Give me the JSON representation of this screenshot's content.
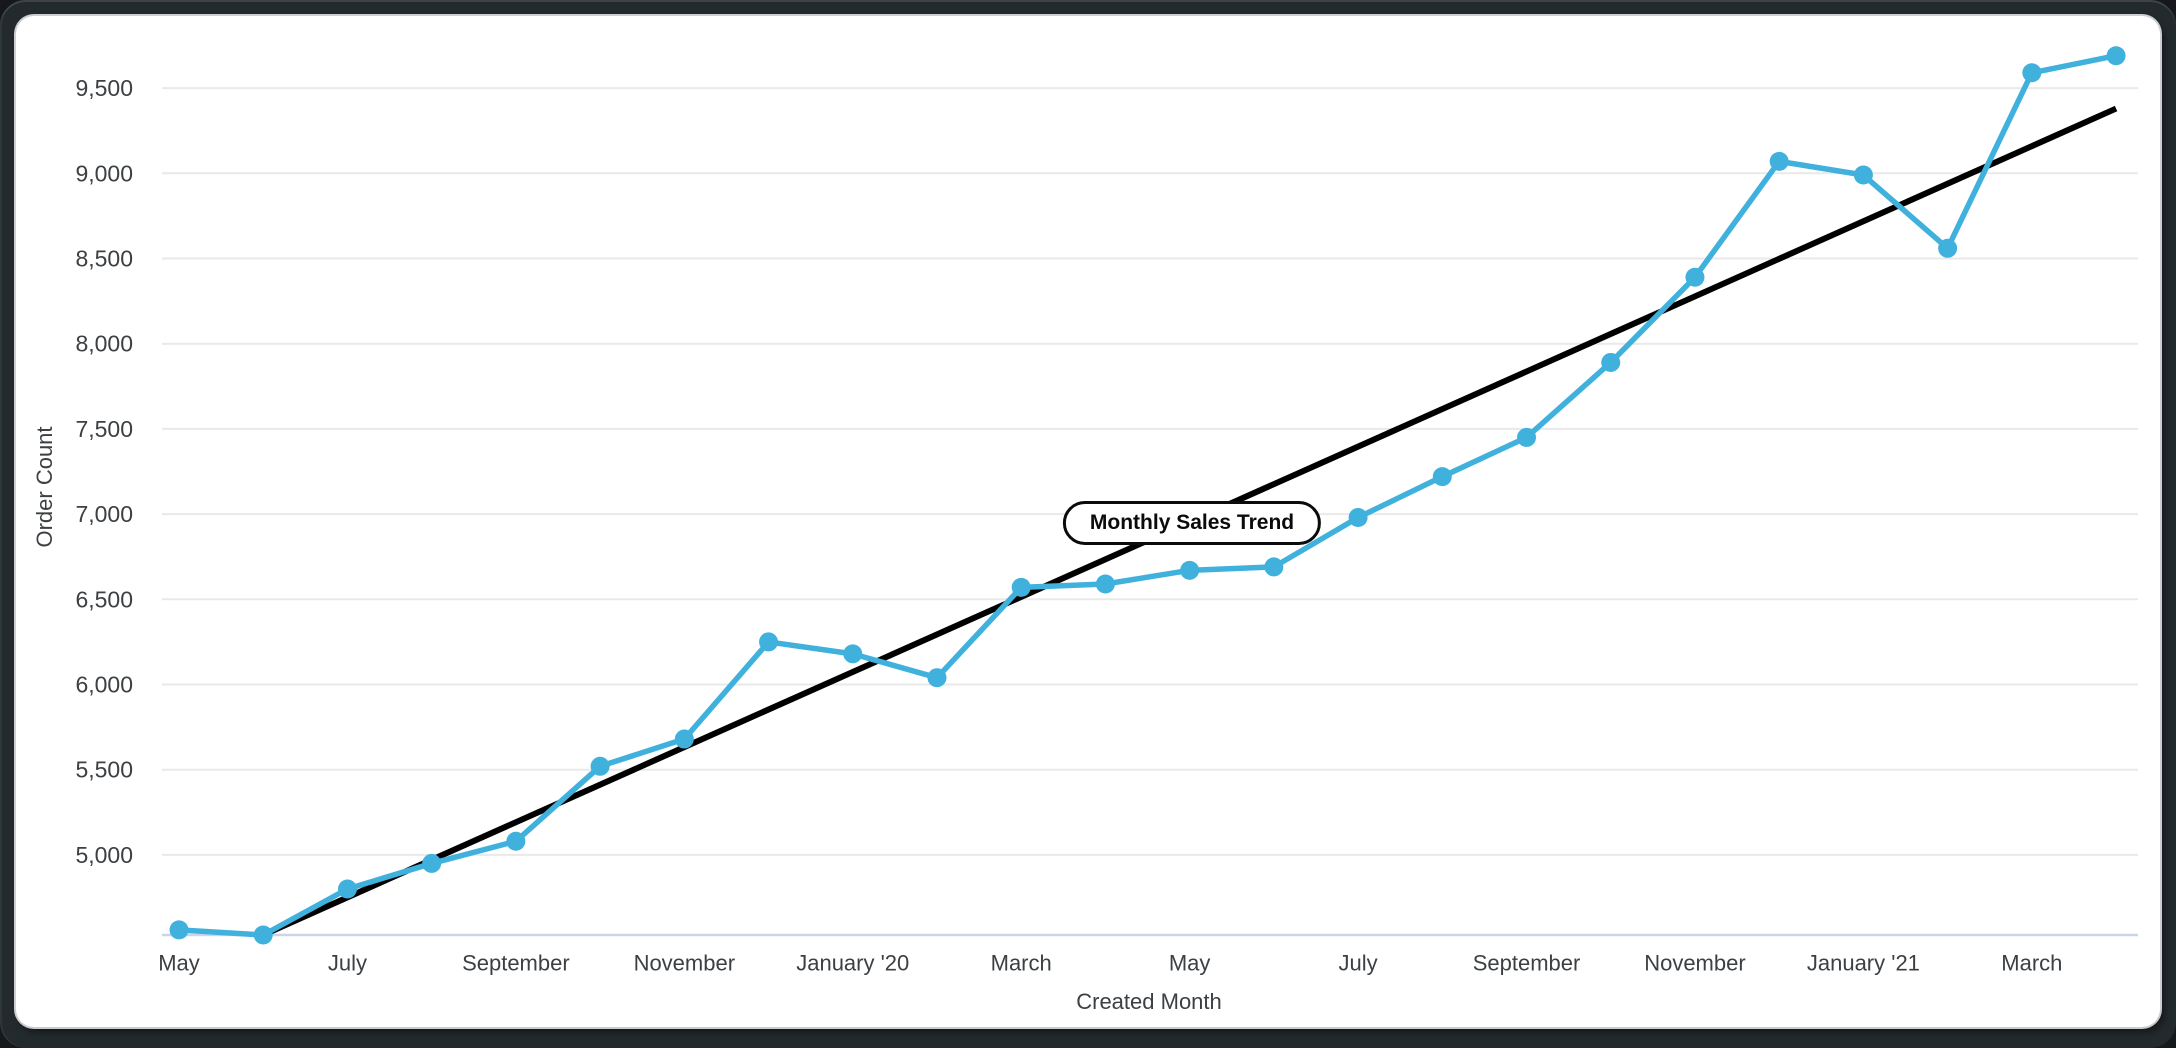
{
  "window": {
    "kind": "report-chart-window"
  },
  "chart_data": {
    "type": "line",
    "title": "",
    "xlabel": "Created Month",
    "ylabel": "Order Count",
    "x": [
      "May 2019",
      "Jun 2019",
      "Jul 2019",
      "Aug 2019",
      "Sep 2019",
      "Oct 2019",
      "Nov 2019",
      "Dec 2019",
      "Jan 2020",
      "Feb 2020",
      "Mar 2020",
      "Apr 2020",
      "May 2020",
      "Jun 2020",
      "Jul 2020",
      "Aug 2020",
      "Sep 2020",
      "Oct 2020",
      "Nov 2020",
      "Dec 2020",
      "Jan 2021",
      "Feb 2021",
      "Mar 2021",
      "Apr 2021"
    ],
    "x_tick_every": 2,
    "x_tick_labels": [
      "May",
      "July",
      "September",
      "November",
      "January '20",
      "March",
      "May",
      "July",
      "September",
      "November",
      "January '21",
      "March"
    ],
    "series": [
      {
        "name": "Order Count",
        "type": "line",
        "color": "#3fb1dc",
        "values": [
          4560,
          4530,
          4800,
          4950,
          5080,
          5520,
          5680,
          6250,
          6180,
          6040,
          6570,
          6590,
          6670,
          6690,
          6980,
          7220,
          7450,
          7890,
          8390,
          9070,
          8990,
          8560,
          9590,
          9690
        ]
      },
      {
        "name": "Monthly Sales Trend",
        "type": "linear-trendline",
        "color": "#000000",
        "start_value": 4310,
        "end_value": 9380
      }
    ],
    "ylim": [
      4530,
      9880
    ],
    "y_ticks": [
      5000,
      5500,
      6000,
      6500,
      7000,
      7500,
      8000,
      8500,
      9000,
      9500
    ],
    "grid": "horizontal-only",
    "legend": "none",
    "trend_label": "Monthly Sales Trend",
    "colors": {
      "gridline": "#e9e9e9",
      "axis_baseline": "#ccd4ec",
      "tick_text": "#3c4043",
      "series_line": "#3fb1dc",
      "trend_line": "#000000"
    }
  }
}
